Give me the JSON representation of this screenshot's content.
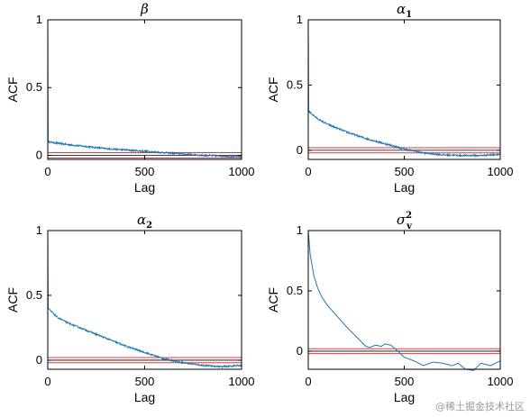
{
  "watermark": "@稀土掘金技术社区",
  "colors": {
    "series": "#1f77b4",
    "band": "#e8363b",
    "zero": "#000000",
    "axis": "#000000"
  },
  "chart_data": [
    {
      "type": "line",
      "title": "β",
      "title_sub": "",
      "title_sup": "",
      "xlabel": "Lag",
      "ylabel": "ACF",
      "xlim": [
        0,
        1000
      ],
      "ylim": [
        -0.03,
        1
      ],
      "xticks": [
        0,
        500,
        1000
      ],
      "yticks": [
        0,
        0.5,
        1
      ],
      "confidence_band": [
        -0.02,
        0.02
      ],
      "noise": 0.006,
      "series": [
        {
          "x": [
            0,
            1,
            50,
            100,
            200,
            300,
            400,
            500,
            600,
            700,
            800,
            900,
            1000
          ],
          "y": [
            1,
            0.1,
            0.09,
            0.08,
            0.065,
            0.05,
            0.04,
            0.03,
            0.02,
            0.01,
            0.0,
            -0.005,
            -0.01
          ]
        }
      ]
    },
    {
      "type": "line",
      "title": "α",
      "title_sub": "1",
      "title_sup": "",
      "xlabel": "Lag",
      "ylabel": "ACF",
      "xlim": [
        0,
        1000
      ],
      "ylim": [
        -0.07,
        1
      ],
      "xticks": [
        0,
        500,
        1000
      ],
      "yticks": [
        0,
        0.5,
        1
      ],
      "confidence_band": [
        -0.02,
        0.02
      ],
      "noise": 0.006,
      "series": [
        {
          "x": [
            0,
            1,
            50,
            100,
            200,
            300,
            400,
            500,
            600,
            700,
            800,
            900,
            1000
          ],
          "y": [
            1,
            0.3,
            0.24,
            0.2,
            0.14,
            0.09,
            0.05,
            0.01,
            -0.02,
            -0.035,
            -0.04,
            -0.04,
            -0.03
          ]
        }
      ]
    },
    {
      "type": "line",
      "title": "α",
      "title_sub": "2",
      "title_sup": "",
      "xlabel": "Lag",
      "ylabel": "ACF",
      "xlim": [
        0,
        1000
      ],
      "ylim": [
        -0.07,
        1
      ],
      "xticks": [
        0,
        500,
        1000
      ],
      "yticks": [
        0,
        0.5,
        1
      ],
      "confidence_band": [
        -0.02,
        0.02
      ],
      "noise": 0.006,
      "series": [
        {
          "x": [
            0,
            1,
            50,
            100,
            200,
            300,
            400,
            500,
            600,
            700,
            800,
            900,
            1000
          ],
          "y": [
            1,
            0.4,
            0.33,
            0.29,
            0.23,
            0.17,
            0.11,
            0.06,
            0.01,
            -0.02,
            -0.04,
            -0.05,
            -0.04
          ]
        }
      ]
    },
    {
      "type": "line",
      "title": "σ",
      "title_sub": "v",
      "title_sup": "2",
      "xlabel": "Lag",
      "ylabel": "ACF",
      "xlim": [
        0,
        1000
      ],
      "ylim": [
        -0.15,
        1
      ],
      "xticks": [
        0,
        500,
        1000
      ],
      "yticks": [
        0,
        0.5,
        1
      ],
      "confidence_band": [
        -0.02,
        0.02
      ],
      "noise": 0,
      "series": [
        {
          "x": [
            0,
            10,
            30,
            50,
            70,
            100,
            150,
            200,
            250,
            300,
            320,
            350,
            380,
            400,
            430,
            460,
            500,
            550,
            600,
            650,
            700,
            750,
            780,
            820,
            860,
            900,
            950,
            1000
          ],
          "y": [
            1,
            0.8,
            0.62,
            0.52,
            0.45,
            0.38,
            0.29,
            0.2,
            0.12,
            0.04,
            0.03,
            0.05,
            0.04,
            0.06,
            0.05,
            0.01,
            -0.05,
            -0.08,
            -0.12,
            -0.09,
            -0.1,
            -0.12,
            -0.1,
            -0.15,
            -0.16,
            -0.1,
            -0.12,
            -0.08
          ]
        }
      ]
    }
  ]
}
